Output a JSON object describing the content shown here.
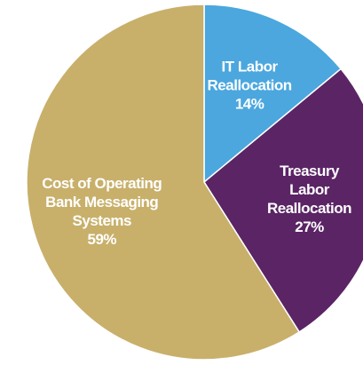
{
  "chart_data": {
    "type": "pie",
    "categories": [
      "IT Labor Reallocation",
      "Treasury Labor Reallocation",
      "Cost of Operating Bank Messaging Systems"
    ],
    "values": [
      14,
      27,
      59
    ],
    "value_labels": [
      "14%",
      "27%",
      "59%"
    ],
    "colors": [
      "#4ba7de",
      "#5b2465",
      "#c8b06b"
    ]
  }
}
